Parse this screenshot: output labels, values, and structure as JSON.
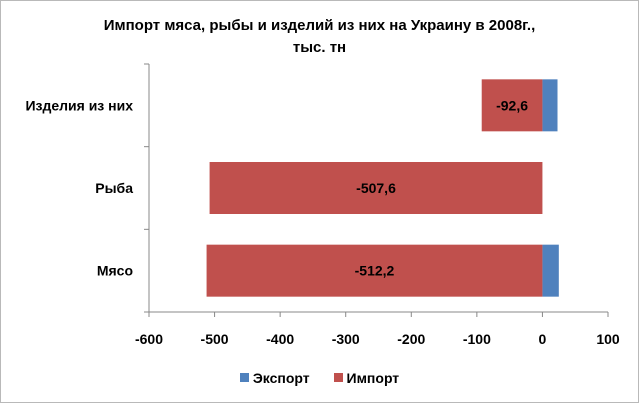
{
  "chart_data": {
    "type": "bar",
    "orientation": "horizontal",
    "stacked": true,
    "title": "Импорт мяса, рыбы и изделий из них на Украину в 2008г., тыс. тн",
    "title_lines": [
      "Импорт мяса, рыбы и изделий из них на Украину в 2008г.,",
      "тыс. тн"
    ],
    "categories": [
      "Мясо",
      "Рыба",
      "Изделия из них"
    ],
    "series": [
      {
        "name": "Экспорт",
        "color": "#4f81bd",
        "values": [
          25,
          0,
          23
        ]
      },
      {
        "name": "Импорт",
        "color": "#c0504d",
        "values": [
          -512.2,
          -507.6,
          -92.6
        ],
        "data_labels": [
          "-512,2",
          "-507,6",
          "-92,6"
        ]
      }
    ],
    "xlim": [
      -600,
      100
    ],
    "xticks": [
      -600,
      -500,
      -400,
      -300,
      -200,
      -100,
      0,
      100
    ],
    "xtick_labels": [
      "-600",
      "-500",
      "-400",
      "-300",
      "-200",
      "-100",
      "0",
      "100"
    ],
    "grid": false,
    "legend_position": "bottom"
  }
}
